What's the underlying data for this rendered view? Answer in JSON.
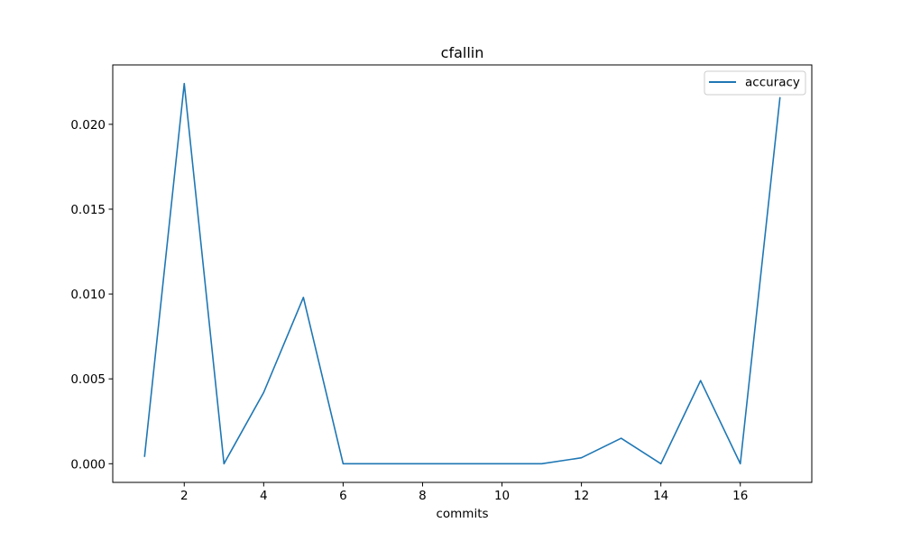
{
  "chart_data": {
    "type": "line",
    "title": "cfallin",
    "xlabel": "commits",
    "ylabel": "",
    "xlim": [
      0.2,
      17.8
    ],
    "ylim": [
      -0.0011,
      0.0235
    ],
    "xticks": [
      2,
      4,
      6,
      8,
      10,
      12,
      14,
      16
    ],
    "xtick_labels": [
      "2",
      "4",
      "6",
      "8",
      "10",
      "12",
      "14",
      "16"
    ],
    "yticks": [
      0.0,
      0.005,
      0.01,
      0.015,
      0.02
    ],
    "ytick_labels": [
      "0.000",
      "0.005",
      "0.010",
      "0.015",
      "0.020"
    ],
    "grid": false,
    "legend_position": "top-right",
    "series": [
      {
        "name": "accuracy",
        "color": "#1f77b4",
        "x": [
          1,
          2,
          3,
          4,
          5,
          6,
          7,
          8,
          9,
          10,
          11,
          12,
          13,
          14,
          15,
          16,
          17
        ],
        "y": [
          0.0004,
          0.0224,
          0.0,
          0.0042,
          0.0098,
          0.0,
          0.0,
          0.0,
          0.0,
          0.0,
          0.0,
          0.00035,
          0.0015,
          0.0,
          0.0049,
          0.0,
          0.0216
        ]
      }
    ]
  }
}
